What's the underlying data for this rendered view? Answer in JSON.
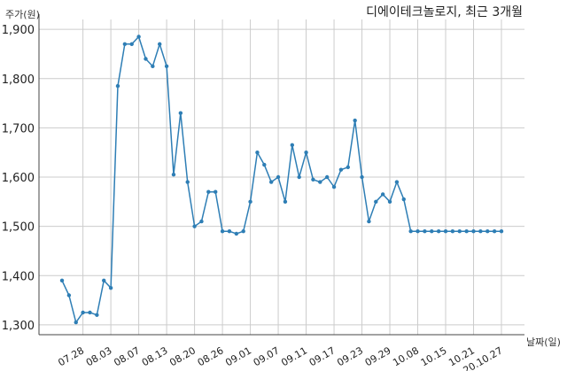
{
  "chart_data": {
    "type": "line",
    "title": "디에이테크놀로지, 최근 3개월",
    "ylabel": "주가(원)",
    "xlabel": "날짜(일)",
    "ylim": [
      1280,
      1920
    ],
    "yticks": [
      1300,
      1400,
      1500,
      1600,
      1700,
      1800,
      1900
    ],
    "ytick_labels": [
      "1,300",
      "1,400",
      "1,500",
      "1,600",
      "1,700",
      "1,800",
      "1,900"
    ],
    "grid": true,
    "line_color": "#2e7eb5",
    "marker_color": "#2e7eb5",
    "xtick_labels": [
      "07.28",
      "08.03",
      "08.07",
      "08.13",
      "08.20",
      "08.26",
      "09.01",
      "09.07",
      "09.11",
      "09.17",
      "09.23",
      "09.29",
      "10.08",
      "10.15",
      "10.21",
      "20.10.27"
    ],
    "xtick_indices": [
      3,
      7,
      11,
      15,
      19,
      23,
      27,
      31,
      35,
      39,
      43,
      47,
      51,
      55,
      59,
      63
    ],
    "series": [
      {
        "values": [
          1390,
          1360,
          1305,
          1325,
          1325,
          1320,
          1390,
          1375,
          1785,
          1870,
          1870,
          1885,
          1840,
          1825,
          1870,
          1825,
          1605,
          1730,
          1590,
          1500,
          1510,
          1570,
          1570,
          1490,
          1490,
          1485,
          1490,
          1550,
          1650,
          1625,
          1590,
          1600,
          1550,
          1665,
          1600,
          1650,
          1595,
          1590,
          1600,
          1580,
          1615,
          1620,
          1715,
          1600,
          1510,
          1550,
          1565,
          1550,
          1590,
          1555,
          1490,
          1490,
          1490,
          1490,
          1490,
          1490,
          1490,
          1490,
          1490,
          1490,
          1490,
          1490,
          1490,
          1490
        ]
      }
    ]
  }
}
